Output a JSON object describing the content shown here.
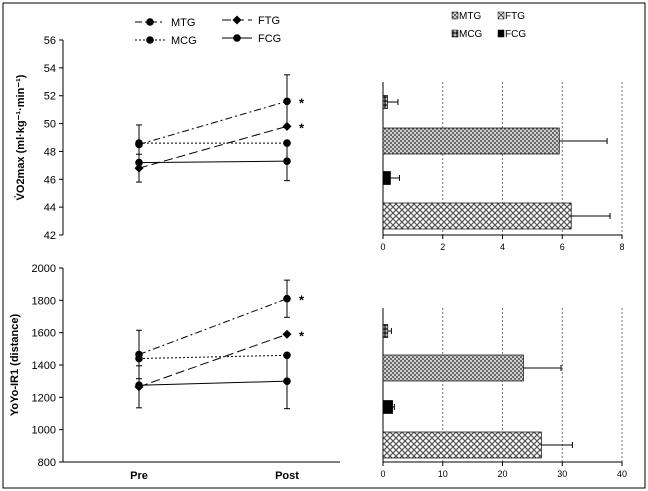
{
  "figure": {
    "legend_line": {
      "items": [
        {
          "label": "MTG",
          "style": "dash-dot",
          "marker": "circle"
        },
        {
          "label": "FTG",
          "style": "long-dash",
          "marker": "diamond"
        },
        {
          "label": "MCG",
          "style": "dotted",
          "marker": "circle"
        },
        {
          "label": "FCG",
          "style": "solid",
          "marker": "circle"
        }
      ]
    },
    "legend_bar": {
      "items": [
        {
          "label": "MTG",
          "fill": "dots"
        },
        {
          "label": "FTG",
          "fill": "crosshatch"
        },
        {
          "label": "MCG",
          "fill": "dots-dark"
        },
        {
          "label": "FCG",
          "fill": "solid"
        }
      ]
    },
    "significance_marker": "*"
  },
  "chart_data": [
    {
      "type": "line",
      "panel": "top-left",
      "ylabel": "V̇O2max (ml·kg⁻¹·min⁻¹)",
      "ylim": [
        42,
        56
      ],
      "yticks": [
        42,
        44,
        46,
        48,
        50,
        52,
        54,
        56
      ],
      "categories": [
        "Pre",
        "Post"
      ],
      "series": [
        {
          "name": "MTG",
          "values": [
            48.5,
            51.6
          ],
          "errors": [
            1.4,
            1.9
          ],
          "significant_post": true
        },
        {
          "name": "FTG",
          "values": [
            46.8,
            49.8
          ],
          "errors": [
            1.0,
            0.0
          ],
          "significant_post": true
        },
        {
          "name": "MCG",
          "values": [
            48.6,
            48.6
          ],
          "errors": [
            0.0,
            0.0
          ],
          "significant_post": false
        },
        {
          "name": "FCG",
          "values": [
            47.2,
            47.3
          ],
          "errors": [
            0.0,
            1.4
          ],
          "significant_post": false
        }
      ]
    },
    {
      "type": "bar",
      "orientation": "horizontal",
      "panel": "top-right",
      "xlim": [
        0,
        8
      ],
      "xticks": [
        0,
        2,
        4,
        6,
        8
      ],
      "grid": true,
      "categories": [
        "MCG",
        "MTG",
        "FCG",
        "FTG"
      ],
      "values": [
        0.15,
        5.9,
        0.25,
        6.3
      ],
      "errors": [
        0.35,
        1.6,
        0.3,
        1.3
      ]
    },
    {
      "type": "line",
      "panel": "bottom-left",
      "ylabel": "YoYo-IR1 (distance)",
      "ylim": [
        800,
        2000
      ],
      "yticks": [
        800,
        1000,
        1200,
        1400,
        1600,
        1800,
        2000
      ],
      "categories": [
        "Pre",
        "Post"
      ],
      "series": [
        {
          "name": "MTG",
          "values": [
            1465,
            1810
          ],
          "errors": [
            150,
            115
          ],
          "significant_post": true
        },
        {
          "name": "FTG",
          "values": [
            1265,
            1590
          ],
          "errors": [
            130,
            0
          ],
          "significant_post": true
        },
        {
          "name": "MCG",
          "values": [
            1440,
            1460
          ],
          "errors": [
            0,
            0
          ],
          "significant_post": false
        },
        {
          "name": "FCG",
          "values": [
            1275,
            1300
          ],
          "errors": [
            0,
            170
          ],
          "significant_post": false
        }
      ]
    },
    {
      "type": "bar",
      "orientation": "horizontal",
      "panel": "bottom-right",
      "xlim": [
        0,
        40
      ],
      "xticks": [
        0,
        10,
        20,
        30,
        40
      ],
      "grid": true,
      "categories": [
        "MCG",
        "MTG",
        "FCG",
        "FTG"
      ],
      "values": [
        0.8,
        23.5,
        1.6,
        26.5
      ],
      "errors": [
        0.6,
        6.3,
        0.3,
        5.2
      ]
    }
  ]
}
